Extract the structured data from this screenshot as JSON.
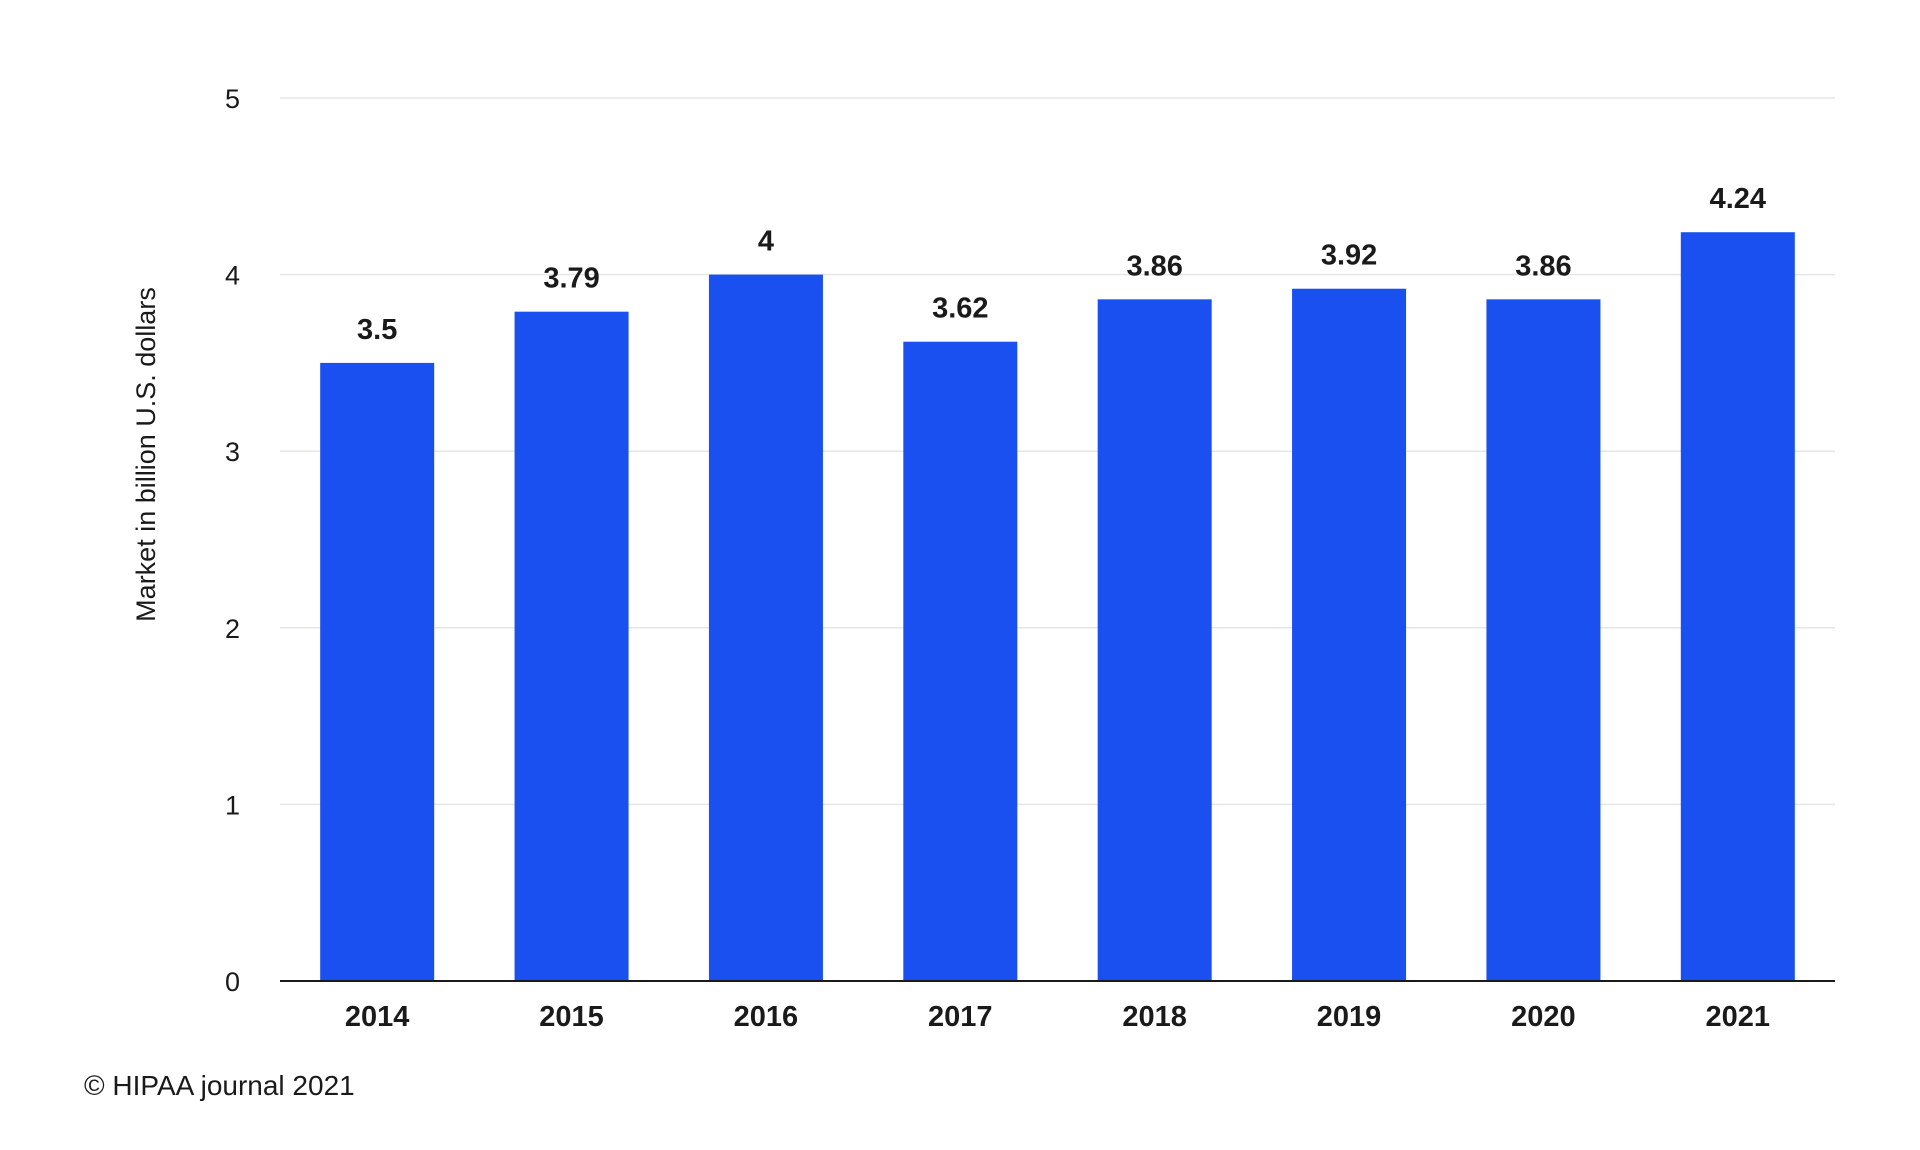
{
  "chart_data": {
    "type": "bar",
    "categories": [
      "2014",
      "2015",
      "2016",
      "2017",
      "2018",
      "2019",
      "2020",
      "2021"
    ],
    "values": [
      3.5,
      3.79,
      4,
      3.62,
      3.86,
      3.92,
      3.86,
      4.24
    ],
    "value_labels": [
      "3.5",
      "3.79",
      "4",
      "3.62",
      "3.86",
      "3.92",
      "3.86",
      "4.24"
    ],
    "ylabel": "Market in billion U.S. dollars",
    "xlabel": "",
    "ylim": [
      0,
      5
    ],
    "yticks": [
      "0",
      "1",
      "2",
      "3",
      "4",
      "5"
    ],
    "grid": true,
    "bar_color": "#1a4ff0"
  },
  "footer": {
    "copyright": "© HIPAA journal 2021"
  }
}
